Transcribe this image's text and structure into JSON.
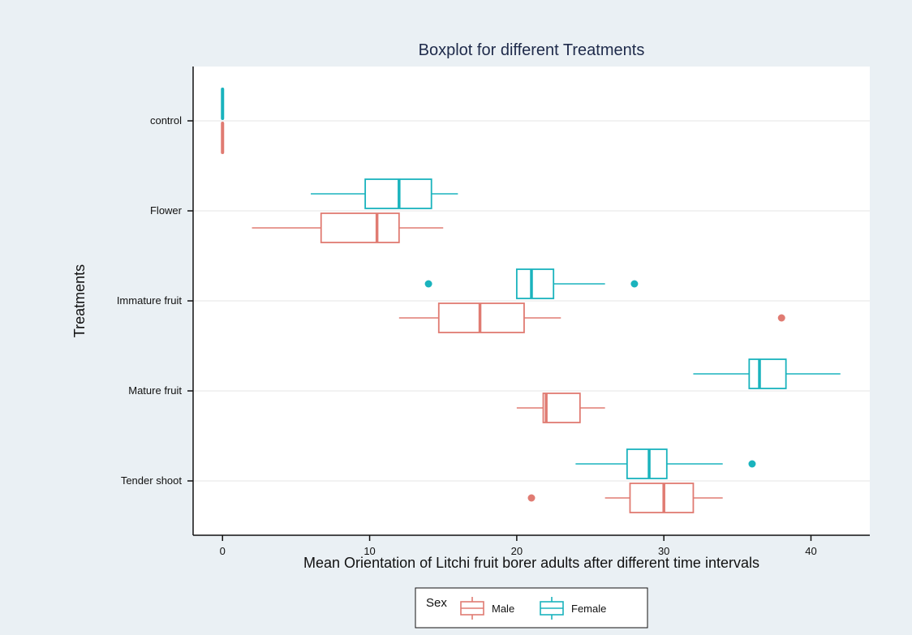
{
  "chart_data": {
    "type": "boxplot",
    "title": "Boxplot for different Treatments",
    "xlabel": "Mean Orientation of Litchi fruit borer adults after different time intervals",
    "ylabel": "Treatments",
    "xlim": [
      -2,
      44
    ],
    "xticks": [
      0,
      10,
      20,
      30,
      40
    ],
    "categories": [
      "control",
      "Flower",
      "Immature fruit",
      "Mature fruit",
      "Tender shoot"
    ],
    "grid": true,
    "legend": {
      "title": "Sex",
      "position": "bottom"
    },
    "series": [
      {
        "name": "Male",
        "color": "#e07b72",
        "boxes": [
          {
            "category": "control",
            "min": 0,
            "q1": 0,
            "median": 0,
            "q3": 0,
            "max": 0,
            "outliers": []
          },
          {
            "category": "Flower",
            "min": 2,
            "q1": 6.7,
            "median": 10.5,
            "q3": 12,
            "max": 15,
            "outliers": []
          },
          {
            "category": "Immature fruit",
            "min": 12,
            "q1": 14.7,
            "median": 17.5,
            "q3": 20.5,
            "max": 23,
            "outliers": [
              38
            ]
          },
          {
            "category": "Mature fruit",
            "min": 20,
            "q1": 21.8,
            "median": 22,
            "q3": 24.3,
            "max": 26,
            "outliers": []
          },
          {
            "category": "Tender shoot",
            "min": 26,
            "q1": 27.7,
            "median": 30,
            "q3": 32,
            "max": 34,
            "outliers": [
              21
            ]
          }
        ]
      },
      {
        "name": "Female",
        "color": "#1ab3bd",
        "boxes": [
          {
            "category": "control",
            "min": 0,
            "q1": 0,
            "median": 0,
            "q3": 0,
            "max": 0,
            "outliers": []
          },
          {
            "category": "Flower",
            "min": 6,
            "q1": 9.7,
            "median": 12,
            "q3": 14.2,
            "max": 16,
            "outliers": []
          },
          {
            "category": "Immature fruit",
            "min": 20,
            "q1": 20,
            "median": 21,
            "q3": 22.5,
            "max": 26,
            "outliers": [
              14,
              28
            ]
          },
          {
            "category": "Mature fruit",
            "min": 32,
            "q1": 35.8,
            "median": 36.5,
            "q3": 38.3,
            "max": 42,
            "outliers": []
          },
          {
            "category": "Tender shoot",
            "min": 24,
            "q1": 27.5,
            "median": 29,
            "q3": 30.2,
            "max": 34,
            "outliers": [
              36
            ]
          }
        ]
      }
    ]
  }
}
